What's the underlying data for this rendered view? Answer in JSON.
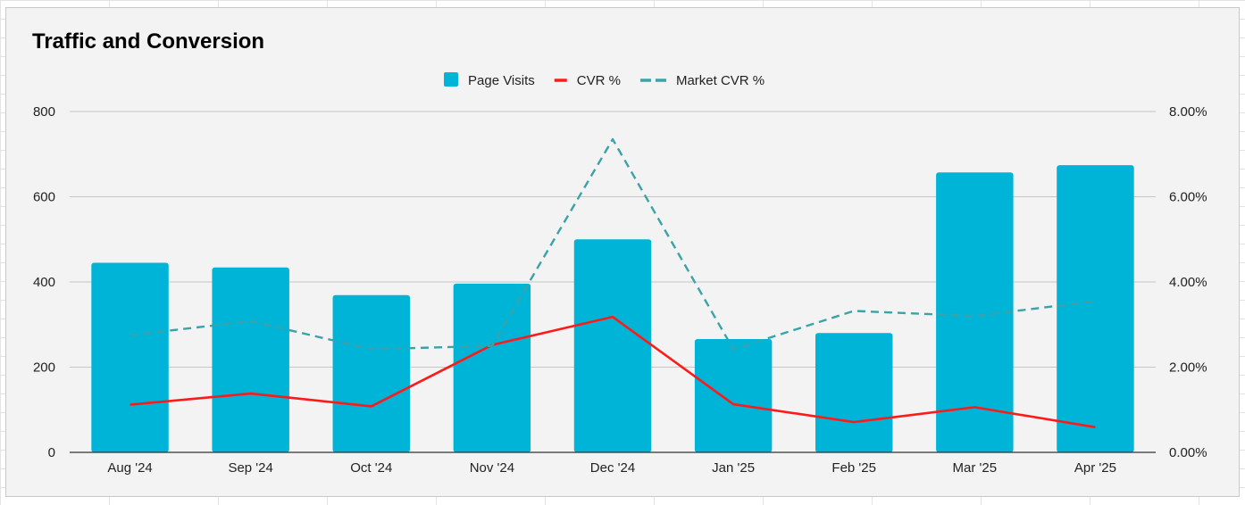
{
  "chart_data": {
    "type": "bar",
    "title": "Traffic and Conversion",
    "xlabel": "",
    "ylabel": "",
    "categories": [
      "Aug '24",
      "Sep '24",
      "Oct '24",
      "Nov '24",
      "Dec '24",
      "Jan '25",
      "Feb '25",
      "Mar '25",
      "Apr '25"
    ],
    "series": [
      {
        "name": "Page Visits",
        "type": "bar",
        "axis": "left",
        "color": "#00b4d8",
        "values": [
          445,
          434,
          369,
          396,
          500,
          266,
          280,
          657,
          674
        ]
      },
      {
        "name": "CVR %",
        "type": "line",
        "axis": "right",
        "color": "#ff1a1a",
        "dash": "solid",
        "values": [
          1.12,
          1.38,
          1.08,
          2.52,
          3.18,
          1.13,
          0.71,
          1.06,
          0.59
        ]
      },
      {
        "name": "Market CVR %",
        "type": "line",
        "axis": "right",
        "color": "#3aa3a8",
        "dash": "dashed",
        "values": [
          2.75,
          3.08,
          2.42,
          2.5,
          7.35,
          2.42,
          3.32,
          3.2,
          3.55
        ]
      }
    ],
    "ylim": [
      0,
      800
    ],
    "y_ticks": [
      "0",
      "200",
      "400",
      "600",
      "800"
    ],
    "y2lim": [
      0,
      8
    ],
    "y2_ticks": [
      "0.00%",
      "2.00%",
      "4.00%",
      "6.00%",
      "8.00%"
    ],
    "grid": true,
    "legend": "top-center"
  }
}
